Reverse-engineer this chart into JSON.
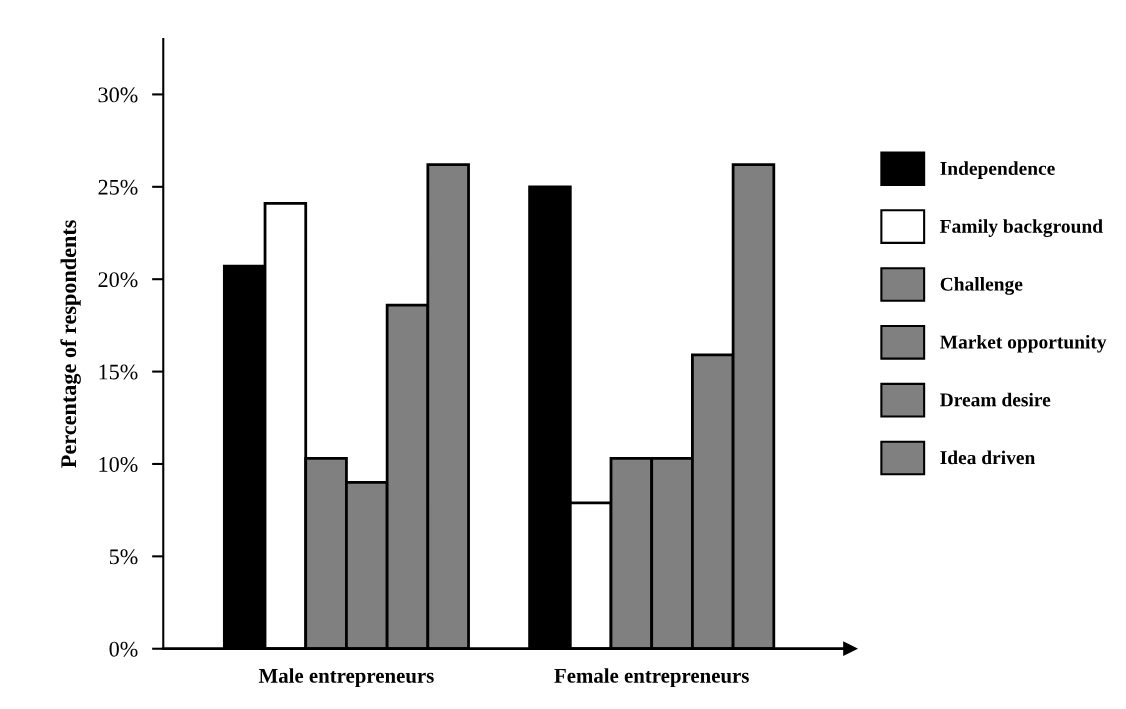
{
  "chart_data": {
    "type": "bar",
    "ylabel": "Percentage of respondents",
    "categories": [
      "Male entrepreneurs",
      "Female entrepreneurs"
    ],
    "series": [
      {
        "name": "Independence",
        "color": "#000000",
        "values": [
          20.7,
          25.0
        ]
      },
      {
        "name": "Family background",
        "color": "#ffffff",
        "values": [
          24.1,
          7.9
        ]
      },
      {
        "name": "Challenge",
        "color": "#808080",
        "values": [
          10.3,
          10.3
        ]
      },
      {
        "name": "Market opportunity",
        "color": "#808080",
        "values": [
          9.0,
          10.3
        ]
      },
      {
        "name": "Dream desire",
        "color": "#808080",
        "values": [
          18.6,
          15.9
        ]
      },
      {
        "name": "Idea driven",
        "color": "#808080",
        "values": [
          26.2,
          26.2
        ]
      }
    ],
    "ylim": [
      0,
      33
    ],
    "yticks": [
      {
        "value": 0,
        "label": "0%"
      },
      {
        "value": 5,
        "label": "5%"
      },
      {
        "value": 10,
        "label": "10%"
      },
      {
        "value": 15,
        "label": "15%"
      },
      {
        "value": 20,
        "label": "20%"
      },
      {
        "value": 25,
        "label": "25%"
      },
      {
        "value": 30,
        "label": "30%"
      }
    ],
    "grid": false,
    "legend": "right"
  }
}
